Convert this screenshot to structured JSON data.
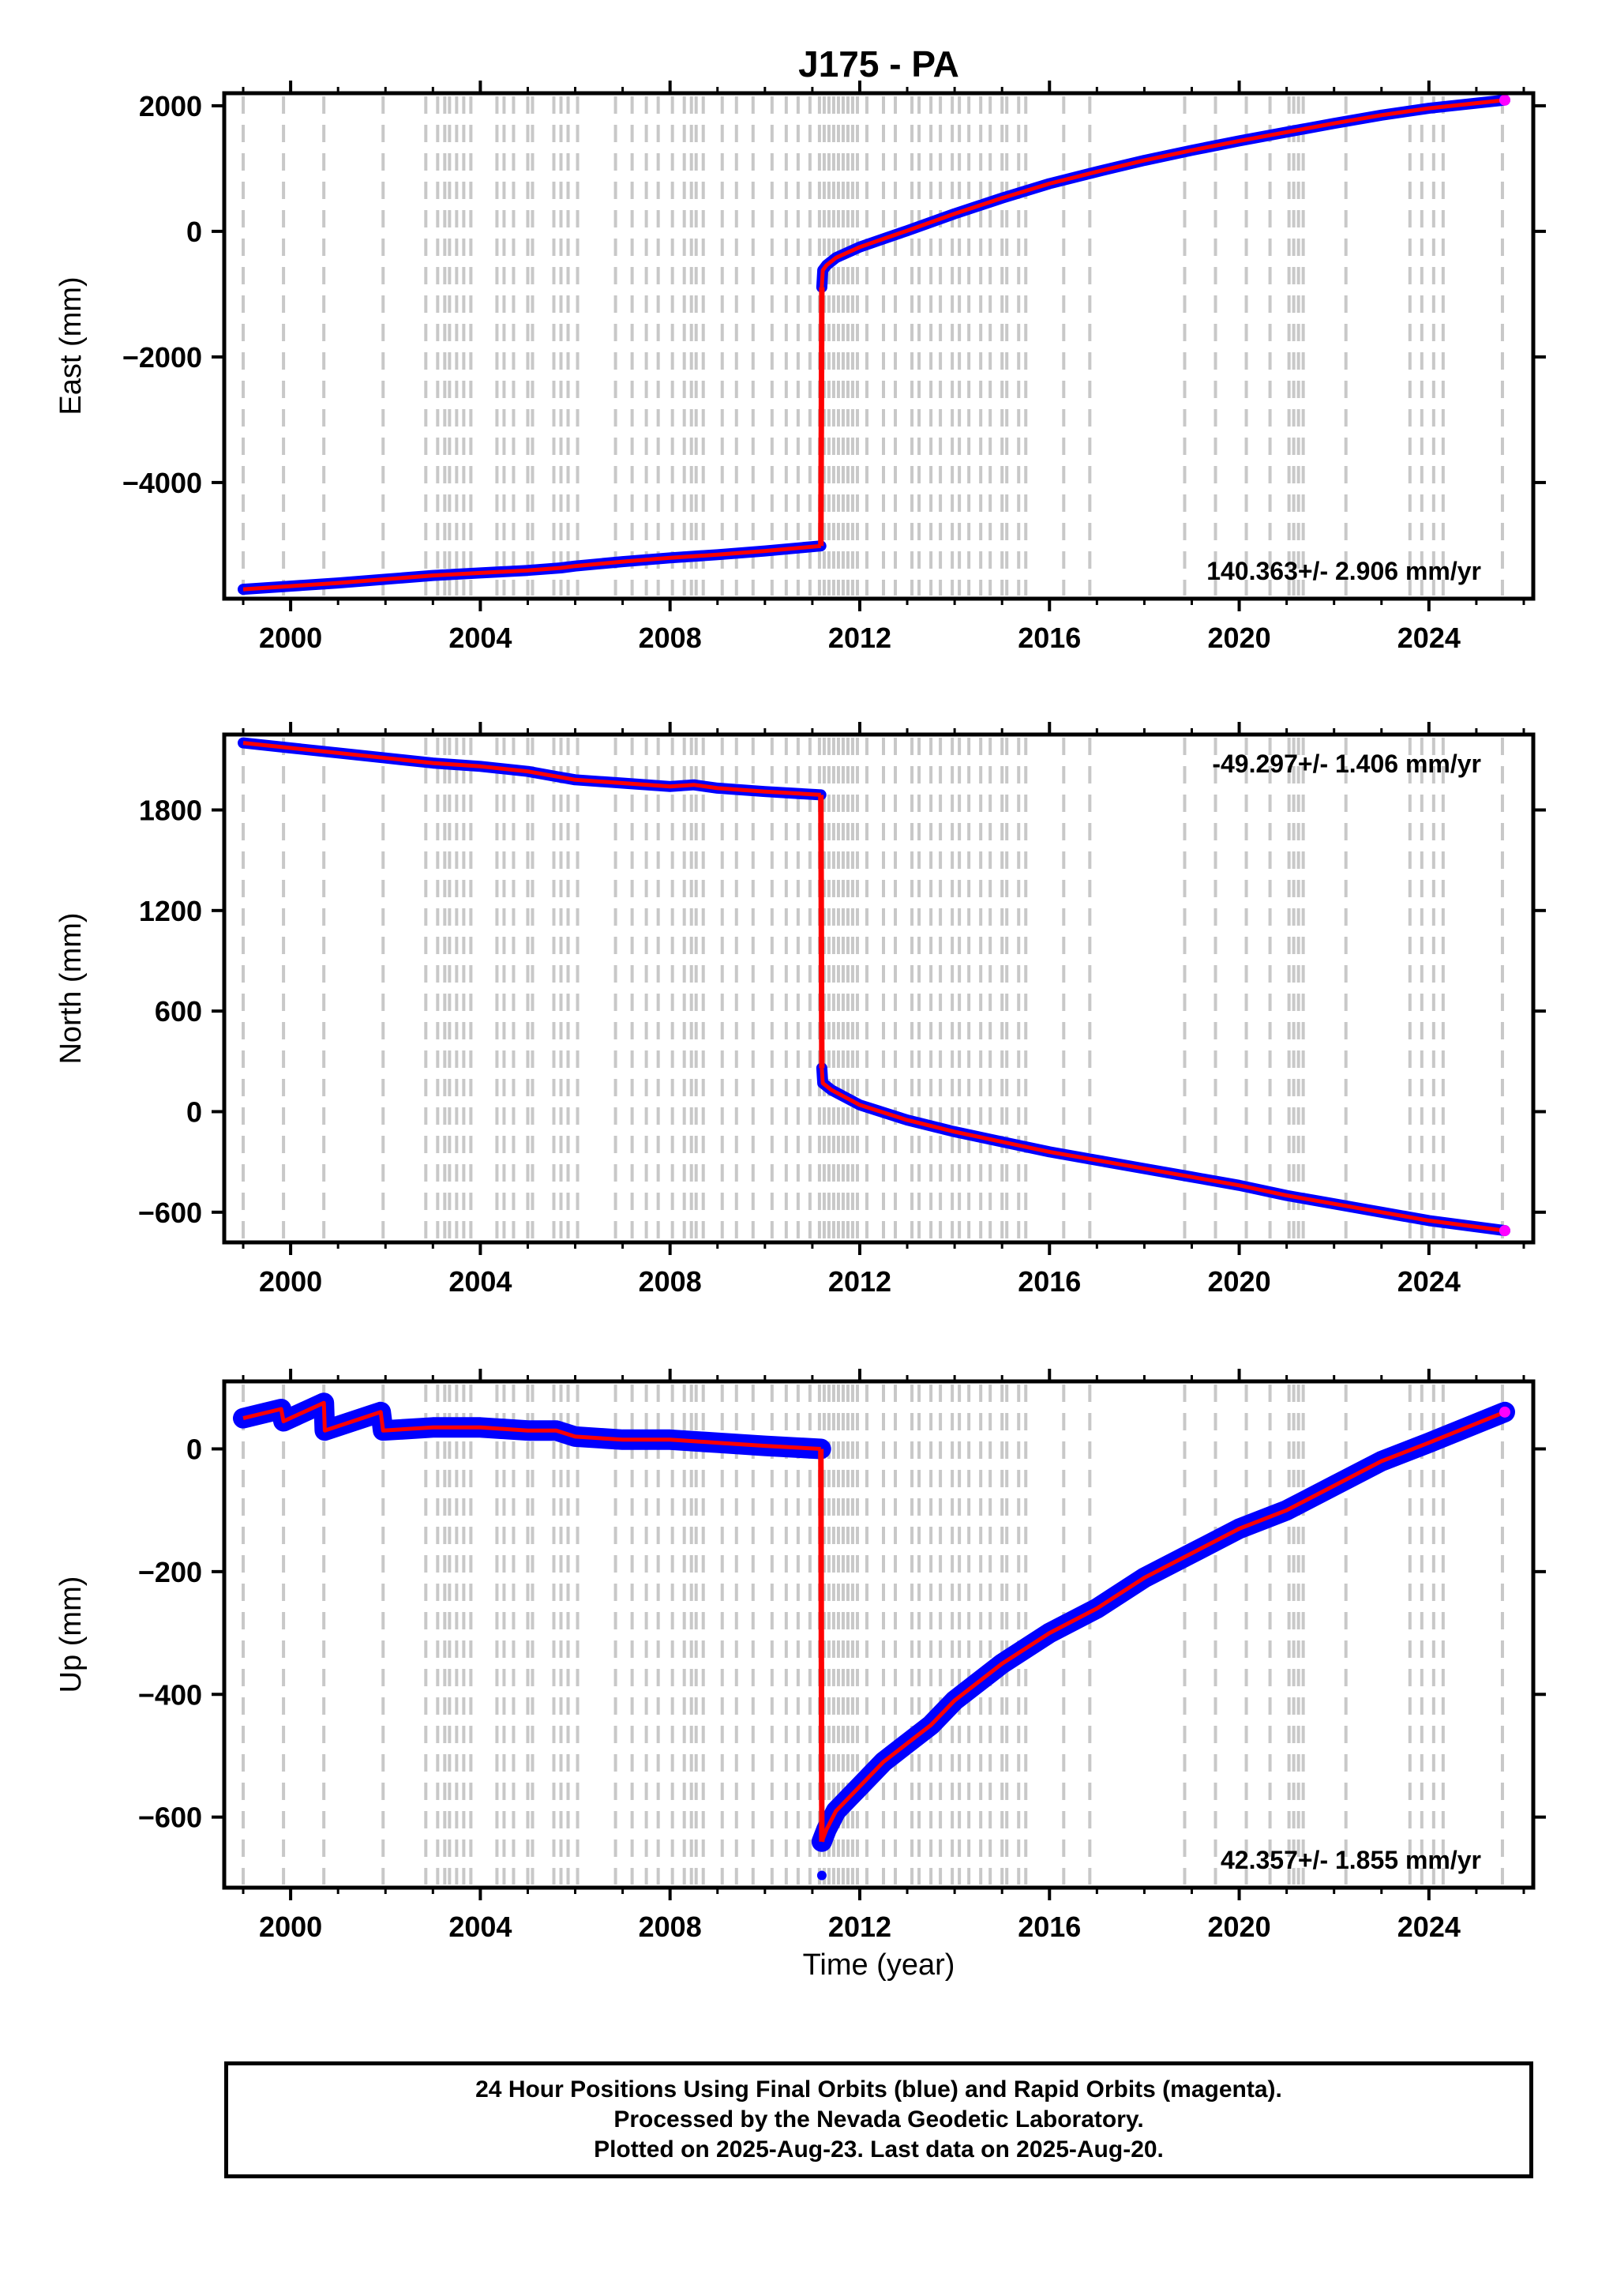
{
  "chart_data": {
    "title": "J175 - PA",
    "type": "scatter",
    "xlabel": "Time (year)",
    "xlim": [
      1998.6,
      2026.2
    ],
    "xticks": [
      2000,
      2004,
      2008,
      2012,
      2016,
      2020,
      2024
    ],
    "colors": {
      "final": "#0000ff",
      "rapid": "#ff00ff",
      "fit": "#ff0000",
      "offsets": "#c8c8c8"
    },
    "offset_lines": [
      1999.0,
      1999.85,
      2000.7,
      2001.95,
      2002.85,
      2003.1,
      2003.25,
      2003.35,
      2003.5,
      2003.65,
      2003.8,
      2004.35,
      2004.5,
      2004.7,
      2005.0,
      2005.1,
      2005.55,
      2005.7,
      2005.85,
      2006.05,
      2006.85,
      2007.2,
      2007.5,
      2007.75,
      2008.05,
      2008.3,
      2008.45,
      2008.55,
      2008.7,
      2009.1,
      2009.4,
      2009.75,
      2010.15,
      2010.45,
      2010.7,
      2010.95,
      2011.15,
      2011.25,
      2011.35,
      2011.45,
      2011.55,
      2011.65,
      2011.75,
      2011.85,
      2011.95,
      2012.15,
      2012.5,
      2012.75,
      2013.1,
      2013.25,
      2013.5,
      2013.7,
      2013.95,
      2014.1,
      2014.3,
      2014.55,
      2014.75,
      2015.0,
      2015.1,
      2015.35,
      2015.5,
      2016.3,
      2016.85,
      2018.85,
      2019.5,
      2020.15,
      2020.65,
      2021.05,
      2021.15,
      2021.25,
      2021.35,
      2022.25,
      2023.6,
      2023.85,
      2024.1,
      2024.3,
      2025.55
    ],
    "panels": [
      {
        "name": "east",
        "ylabel": "East (mm)",
        "ylim": [
          -5850,
          2200
        ],
        "yticks": [
          2000,
          0,
          -2000,
          -4000
        ],
        "ytick_labels": [
          "2000",
          "0",
          "−2000",
          "−4000"
        ],
        "velocity": "140.363+/- 2.906 mm/yr",
        "velocity_position": "bottom-right",
        "series": [
          {
            "x": [
              1999.0,
              2000.0,
              2001.0,
              2002.0,
              2003.0,
              2004.0,
              2005.0,
              2005.7,
              2006.0,
              2007.0,
              2008.0,
              2009.0,
              2010.0,
              2011.18
            ],
            "y": [
              -5700,
              -5650,
              -5600,
              -5540,
              -5480,
              -5440,
              -5400,
              -5360,
              -5330,
              -5260,
              -5200,
              -5150,
              -5090,
              -5010
            ]
          },
          {
            "x": [
              2011.2,
              2011.22,
              2011.3,
              2011.5,
              2012.0,
              2012.5,
              2013.0,
              2014.0,
              2015.0,
              2016.0,
              2017.0,
              2018.0,
              2019.0,
              2020.0,
              2021.0,
              2022.0,
              2023.0,
              2024.0,
              2025.6
            ],
            "y": [
              -890,
              -620,
              -540,
              -420,
              -250,
              -120,
              10,
              280,
              530,
              760,
              950,
              1130,
              1290,
              1440,
              1580,
              1720,
              1850,
              1960,
              2090
            ]
          }
        ]
      },
      {
        "name": "north",
        "ylabel": "North (mm)",
        "ylim": [
          -780,
          2250
        ],
        "yticks": [
          1800,
          1200,
          600,
          0,
          -600
        ],
        "ytick_labels": [
          "1800",
          "1200",
          "600",
          "0",
          "−600"
        ],
        "velocity": "-49.297+/- 1.406 mm/yr",
        "velocity_position": "top-right",
        "series": [
          {
            "x": [
              1999.0,
              2000.0,
              2001.0,
              2002.0,
              2003.0,
              2004.0,
              2005.0,
              2005.6,
              2006.0,
              2007.0,
              2008.0,
              2008.5,
              2009.0,
              2010.0,
              2011.18
            ],
            "y": [
              2200,
              2170,
              2140,
              2110,
              2080,
              2060,
              2030,
              2000,
              1980,
              1960,
              1940,
              1950,
              1930,
              1910,
              1890
            ]
          },
          {
            "x": [
              2011.2,
              2011.22,
              2011.4,
              2012.0,
              2013.0,
              2014.0,
              2015.0,
              2016.0,
              2017.0,
              2018.0,
              2019.0,
              2020.0,
              2021.0,
              2022.0,
              2023.0,
              2024.0,
              2025.6
            ],
            "y": [
              260,
              170,
              130,
              40,
              -50,
              -120,
              -180,
              -240,
              -290,
              -340,
              -390,
              -440,
              -500,
              -550,
              -600,
              -650,
              -710
            ]
          }
        ]
      },
      {
        "name": "up",
        "ylabel": "Up (mm)",
        "ylim": [
          -715,
          110
        ],
        "yticks": [
          0,
          -200,
          -400,
          -600
        ],
        "ytick_labels": [
          "0",
          "−200",
          "−400",
          "−600"
        ],
        "velocity": "42.357+/- 1.855 mm/yr",
        "velocity_position": "bottom-right",
        "series": [
          {
            "x": [
              1999.0,
              1999.8,
              1999.85,
              2000.7,
              2000.72,
              2001.9,
              2001.95,
              2003.0,
              2004.0,
              2005.0,
              2005.6,
              2006.0,
              2007.0,
              2008.0,
              2009.0,
              2010.0,
              2011.18
            ],
            "y": [
              50,
              65,
              45,
              75,
              30,
              60,
              30,
              35,
              35,
              30,
              30,
              20,
              15,
              15,
              10,
              5,
              0
            ]
          },
          {
            "x": [
              2011.2,
              2011.3,
              2011.5,
              2012.0,
              2012.5,
              2013.0,
              2013.5,
              2014.0,
              2015.0,
              2016.0,
              2017.0,
              2018.0,
              2019.0,
              2020.0,
              2021.0,
              2022.0,
              2023.0,
              2024.0,
              2025.6
            ],
            "y": [
              -640,
              -620,
              -590,
              -550,
              -510,
              -480,
              -450,
              -410,
              -350,
              -300,
              -260,
              -210,
              -170,
              -130,
              -100,
              -60,
              -20,
              10,
              60
            ]
          }
        ],
        "outliers": {
          "x": [
            2011.2
          ],
          "y": [
            -695
          ]
        }
      }
    ]
  },
  "footer": {
    "line1": "24 Hour Positions Using Final Orbits (blue) and Rapid Orbits (magenta).",
    "line2": "Processed by the Nevada Geodetic Laboratory.",
    "line3": "Plotted on 2025-Aug-23. Last data on 2025-Aug-20."
  }
}
